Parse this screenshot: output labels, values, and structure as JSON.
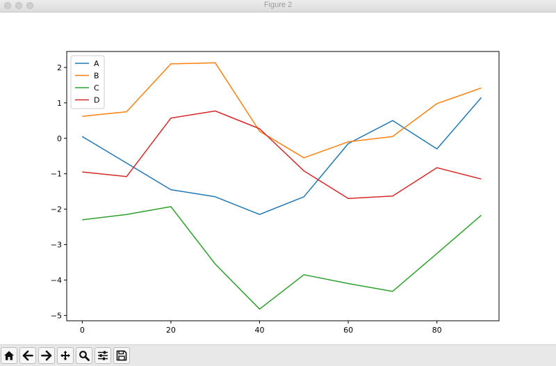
{
  "window": {
    "title": "Figure 2"
  },
  "toolbar": {
    "buttons": [
      {
        "name": "home-icon"
      },
      {
        "name": "back-icon"
      },
      {
        "name": "forward-icon"
      },
      {
        "name": "pan-icon"
      },
      {
        "name": "zoom-icon"
      },
      {
        "name": "configure-subplots-icon"
      },
      {
        "name": "save-icon"
      }
    ]
  },
  "chart_data": {
    "type": "line",
    "x": [
      0,
      10,
      20,
      30,
      40,
      50,
      60,
      70,
      80,
      90
    ],
    "xlim": [
      -3.5,
      94
    ],
    "ylim": [
      -5.15,
      2.45
    ],
    "xticks": [
      0,
      20,
      40,
      60,
      80
    ],
    "xtick_labels": [
      "0",
      "20",
      "40",
      "60",
      "80"
    ],
    "yticks": [
      2,
      1,
      0,
      -1,
      -2,
      -3,
      -4,
      -5
    ],
    "ytick_labels": [
      "2",
      "1",
      "0",
      "−1",
      "−2",
      "−3",
      "−4",
      "−5"
    ],
    "grid": false,
    "legend": "top-left",
    "series": [
      {
        "name": "A",
        "color": "#1f77b4",
        "values": [
          0.05,
          -0.7,
          -1.45,
          -1.65,
          -2.15,
          -1.65,
          -0.15,
          0.5,
          -0.3,
          1.15
        ]
      },
      {
        "name": "B",
        "color": "#ff7f0e",
        "values": [
          0.62,
          0.75,
          2.1,
          2.13,
          0.2,
          -0.55,
          -0.1,
          0.05,
          0.98,
          1.42
        ]
      },
      {
        "name": "C",
        "color": "#2ca02c",
        "values": [
          -2.3,
          -2.15,
          -1.93,
          -3.55,
          -4.82,
          -3.85,
          -4.1,
          -4.32,
          -3.25,
          -2.17
        ]
      },
      {
        "name": "D",
        "color": "#d62728",
        "values": [
          -0.95,
          -1.08,
          0.57,
          0.77,
          0.27,
          -0.92,
          -1.7,
          -1.63,
          -0.83,
          -1.15
        ]
      }
    ]
  }
}
